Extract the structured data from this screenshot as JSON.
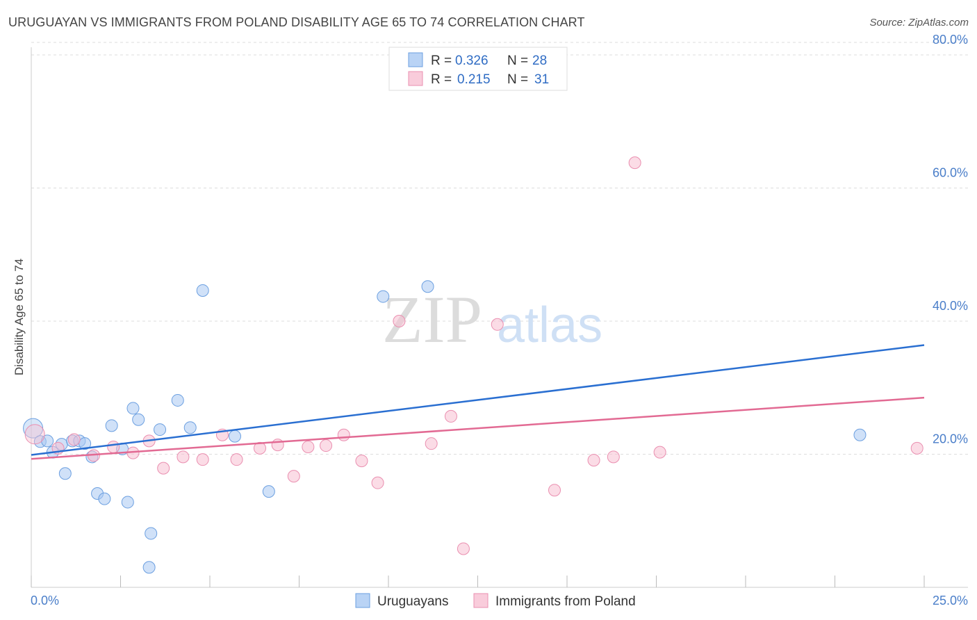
{
  "chart_data": {
    "type": "scatter",
    "title": "URUGUAYAN VS IMMIGRANTS FROM POLAND DISABILITY AGE 65 TO 74 CORRELATION CHART",
    "source": "Source: ZipAtlas.com",
    "ylabel": "Disability Age 65 to 74",
    "xlim": [
      0,
      25
    ],
    "ylim": [
      0,
      80
    ],
    "x_tick_labels": [
      "0.0%",
      "25.0%"
    ],
    "y_ticks": [
      20,
      40,
      60,
      80
    ],
    "y_tick_labels": [
      "20.0%",
      "40.0%",
      "60.0%",
      "80.0%"
    ],
    "watermark": "ZIPatlas",
    "colors": {
      "uruguayans_fill": "#a9c9f2",
      "uruguayans_stroke": "#6b9fe0",
      "uruguayans_line": "#2a6fd1",
      "poland_fill": "#f7c0d2",
      "poland_stroke": "#ea8fb0",
      "poland_line": "#e26a93",
      "tick_label": "#4a7ec9"
    },
    "legend": {
      "r_label": "R =",
      "n_label": "N =",
      "rows": [
        {
          "r": "0.326",
          "n": "28"
        },
        {
          "r": "0.215",
          "n": "31"
        }
      ]
    },
    "series": [
      {
        "name": "Uruguayans",
        "trend": [
          [
            0,
            19.9
          ],
          [
            25,
            36.4
          ]
        ],
        "points": [
          [
            0.05,
            23.9
          ],
          [
            0.25,
            21.9
          ],
          [
            0.45,
            22.0
          ],
          [
            0.6,
            20.3
          ],
          [
            0.85,
            21.5
          ],
          [
            0.95,
            17.1
          ],
          [
            1.15,
            22.0
          ],
          [
            1.35,
            22.0
          ],
          [
            1.5,
            21.6
          ],
          [
            1.7,
            19.6
          ],
          [
            1.85,
            14.1
          ],
          [
            2.05,
            13.3
          ],
          [
            2.25,
            24.3
          ],
          [
            2.55,
            20.8
          ],
          [
            2.7,
            12.8
          ],
          [
            2.85,
            26.9
          ],
          [
            3.0,
            25.2
          ],
          [
            3.35,
            8.1
          ],
          [
            3.3,
            3.0
          ],
          [
            3.6,
            23.7
          ],
          [
            4.1,
            28.1
          ],
          [
            4.45,
            24.0
          ],
          [
            4.8,
            44.6
          ],
          [
            5.7,
            22.7
          ],
          [
            6.65,
            14.4
          ],
          [
            9.85,
            43.7
          ],
          [
            11.1,
            45.2
          ],
          [
            23.2,
            22.9
          ]
        ]
      },
      {
        "name": "Immigrants from Poland",
        "trend": [
          [
            0,
            19.3
          ],
          [
            25,
            28.5
          ]
        ],
        "points": [
          [
            0.1,
            23.0
          ],
          [
            0.75,
            20.9
          ],
          [
            1.2,
            22.2
          ],
          [
            1.75,
            19.8
          ],
          [
            2.3,
            21.1
          ],
          [
            2.85,
            20.2
          ],
          [
            3.3,
            22.0
          ],
          [
            3.7,
            17.9
          ],
          [
            4.25,
            19.6
          ],
          [
            4.8,
            19.2
          ],
          [
            5.35,
            22.9
          ],
          [
            5.75,
            19.2
          ],
          [
            6.4,
            20.9
          ],
          [
            6.9,
            21.4
          ],
          [
            7.35,
            16.7
          ],
          [
            7.75,
            21.1
          ],
          [
            8.25,
            21.3
          ],
          [
            8.75,
            22.9
          ],
          [
            9.25,
            19.0
          ],
          [
            9.7,
            15.7
          ],
          [
            10.3,
            40.0
          ],
          [
            11.2,
            21.6
          ],
          [
            11.75,
            25.7
          ],
          [
            12.1,
            5.8
          ],
          [
            13.05,
            39.5
          ],
          [
            14.65,
            14.6
          ],
          [
            15.75,
            19.1
          ],
          [
            16.9,
            63.8
          ],
          [
            16.3,
            19.6
          ],
          [
            17.6,
            20.3
          ],
          [
            24.8,
            20.9
          ]
        ]
      }
    ]
  }
}
